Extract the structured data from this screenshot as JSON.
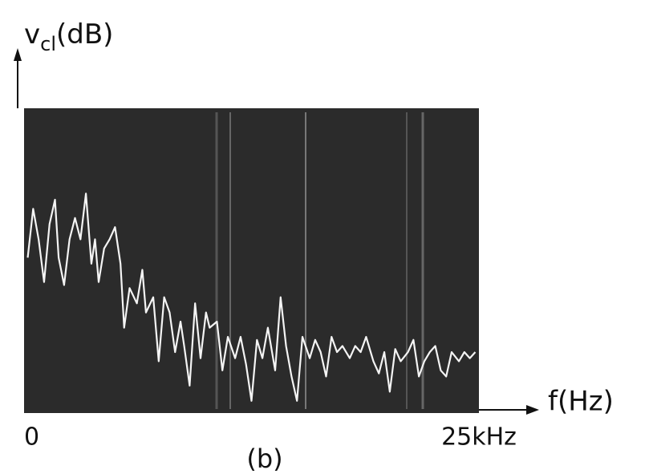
{
  "chart_data": {
    "type": "line",
    "caption": "(b)",
    "y_label": {
      "symbol": "v",
      "subscript": "cl",
      "unit": "(dB)"
    },
    "x_label": "f(Hz)",
    "xlim": [
      0,
      25
    ],
    "ylim": [
      0,
      100
    ],
    "xticks": [
      0,
      {
        "value": 25,
        "label": "25kHz"
      }
    ],
    "color": "#f4f4f4",
    "background": "#2b2b2b",
    "x": [
      0.2,
      0.5,
      0.8,
      1.1,
      1.4,
      1.7,
      1.9,
      2.2,
      2.5,
      2.8,
      3.1,
      3.3,
      3.4,
      3.7,
      3.9,
      4.1,
      4.4,
      4.7,
      5.0,
      5.3,
      5.5,
      5.8,
      6.2,
      6.5,
      6.7,
      7.1,
      7.4,
      7.7,
      8.0,
      8.3,
      8.6,
      8.8,
      9.1,
      9.4,
      9.7,
      10.0,
      10.2,
      10.6,
      10.9,
      11.2,
      11.6,
      11.9,
      12.2,
      12.5,
      12.8,
      13.1,
      13.4,
      13.8,
      14.1,
      14.4,
      14.7,
      15.0,
      15.3,
      15.7,
      16.0,
      16.3,
      16.6,
      16.9,
      17.2,
      17.5,
      17.9,
      18.2,
      18.5,
      18.8,
      19.2,
      19.5,
      19.8,
      20.1,
      20.4,
      20.7,
      21.1,
      21.4,
      21.7,
      22.0,
      22.3,
      22.6,
      22.9,
      23.2,
      23.5,
      23.9,
      24.2,
      24.5,
      24.8
    ],
    "values": [
      51,
      67,
      57,
      43,
      62,
      70,
      51,
      42,
      57,
      64,
      57,
      67,
      72,
      49,
      57,
      43,
      54,
      57,
      61,
      49,
      28,
      41,
      36,
      47,
      33,
      38,
      17,
      38,
      33,
      20,
      30,
      22,
      9,
      36,
      18,
      33,
      28,
      30,
      14,
      25,
      18,
      25,
      16,
      4,
      24,
      18,
      28,
      14,
      38,
      22,
      12,
      4,
      25,
      18,
      24,
      20,
      12,
      25,
      20,
      22,
      18,
      22,
      20,
      25,
      17,
      13,
      20,
      7,
      21,
      17,
      20,
      24,
      12,
      17,
      20,
      22,
      14,
      12,
      20,
      17,
      20,
      18,
      20
    ]
  }
}
